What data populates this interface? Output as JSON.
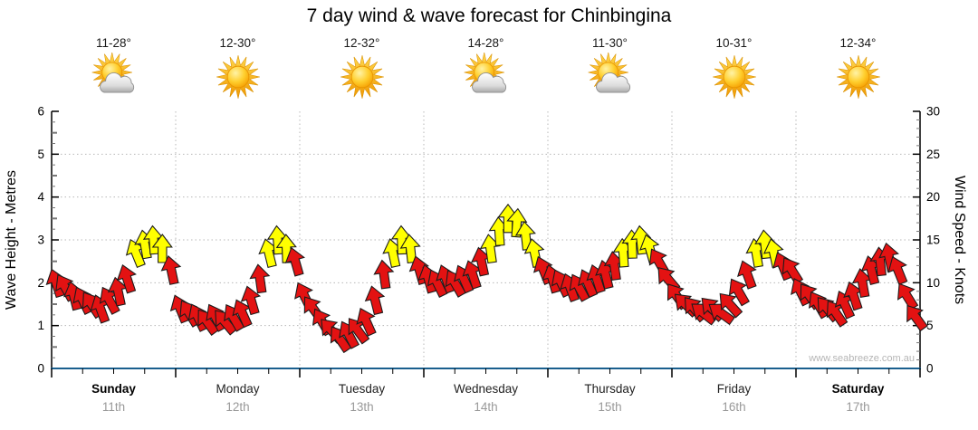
{
  "title": "7 day wind & wave forecast for Chinbingina",
  "watermark": "www.seabreeze.com.au",
  "colors": {
    "arrow_red": "#e31212",
    "arrow_yellow": "#ffff00",
    "arrow_outline": "#1c1c1c",
    "bottom_axis": "#1a5f8e",
    "side_axis": "#000000",
    "grid": "#b8b8b8",
    "tick_minor": "#777777",
    "date_text": "#999999",
    "watermark_text": "#b5b5b5"
  },
  "left_axis": {
    "label": "Wave Height - Metres",
    "min": 0,
    "max": 6,
    "ticks": [
      0,
      1,
      2,
      3,
      4,
      5,
      6
    ],
    "minor_step": 0.25
  },
  "right_axis": {
    "label": "Wind Speed - Knots",
    "min": 0,
    "max": 30,
    "ticks": [
      0,
      5,
      10,
      15,
      20,
      25,
      30
    ],
    "minor_step": 1
  },
  "days": [
    {
      "name": "Sunday",
      "date": "11th",
      "temp": "11-28°",
      "icon": "partly-cloudy",
      "bold": true
    },
    {
      "name": "Monday",
      "date": "12th",
      "temp": "12-30°",
      "icon": "sunny",
      "bold": false
    },
    {
      "name": "Tuesday",
      "date": "13th",
      "temp": "12-32°",
      "icon": "sunny",
      "bold": false
    },
    {
      "name": "Wednesday",
      "date": "14th",
      "temp": "14-28°",
      "icon": "partly-cloudy",
      "bold": false
    },
    {
      "name": "Thursday",
      "date": "15th",
      "temp": "11-30°",
      "icon": "partly-cloudy",
      "bold": false
    },
    {
      "name": "Friday",
      "date": "16th",
      "temp": "10-31°",
      "icon": "sunny",
      "bold": false
    },
    {
      "name": "Saturday",
      "date": "17th",
      "temp": "12-34°",
      "icon": "sunny",
      "bold": true
    }
  ],
  "chart_data": {
    "type": "scatter",
    "marker": "wind-direction-arrow",
    "title": "7 day wind & wave forecast for Chinbingina",
    "x_axis": {
      "categories": [
        "Sunday 11th",
        "Monday 12th",
        "Tuesday 13th",
        "Wednesday 14th",
        "Thursday 15th",
        "Friday 16th",
        "Saturday 17th"
      ],
      "points_per_day": 14,
      "minor_ticks_per_day": 4
    },
    "y_axis_left": {
      "label": "Wave Height - Metres",
      "range": [
        0,
        6
      ],
      "grid_at": [
        1,
        2,
        3,
        4,
        5
      ]
    },
    "y_axis_right": {
      "label": "Wind Speed - Knots",
      "range": [
        0,
        30
      ]
    },
    "legend": "none",
    "grid": {
      "horizontal_dotted": true,
      "vertical_dotted_day_boundaries": true
    },
    "arrow_color_rule": {
      "red_below_knots": 13.25,
      "yellow_at_or_above_knots": 13.25
    },
    "series": [
      {
        "day": "Sunday",
        "wind_knots": [
          10,
          9.5,
          8.5,
          8,
          7.5,
          7,
          8,
          9,
          10.5,
          13.5,
          14.5,
          15,
          14,
          11.5
        ],
        "wind_direction_deg": [
          -18,
          -30,
          -14,
          -26,
          -34,
          -20,
          -28,
          -12,
          -18,
          -22,
          -10,
          -4,
          0,
          -12
        ]
      },
      {
        "day": "Monday",
        "wind_knots": [
          7,
          6.5,
          6,
          5.5,
          6,
          5.5,
          6,
          6.5,
          8,
          10.5,
          13.5,
          15,
          14,
          12.5
        ],
        "wind_direction_deg": [
          -22,
          -32,
          -26,
          -36,
          -28,
          -40,
          -30,
          -24,
          -16,
          -8,
          -14,
          -4,
          -2,
          -16
        ]
      },
      {
        "day": "Tuesday",
        "wind_knots": [
          8.5,
          7,
          5.5,
          4.5,
          3.5,
          4,
          4.5,
          5.5,
          8,
          11,
          13.5,
          15,
          14,
          11.5
        ],
        "wind_direction_deg": [
          -26,
          -36,
          -30,
          -42,
          -34,
          -28,
          -36,
          -24,
          -14,
          -8,
          -12,
          -2,
          -6,
          -16
        ]
      },
      {
        "day": "Wednesday",
        "wind_knots": [
          10.5,
          10,
          10.5,
          10,
          10.5,
          11,
          12.5,
          14,
          16,
          17.5,
          17,
          15.5,
          13.5,
          11.5
        ],
        "wind_direction_deg": [
          -16,
          -26,
          -20,
          -30,
          -24,
          -18,
          -12,
          -8,
          -4,
          0,
          4,
          -6,
          -12,
          -22
        ]
      },
      {
        "day": "Thursday",
        "wind_knots": [
          10.5,
          10,
          9.5,
          9.5,
          10,
          10.5,
          11,
          12,
          13.5,
          14.5,
          15,
          14,
          12.5,
          10.5
        ],
        "wind_direction_deg": [
          -16,
          -26,
          -20,
          -28,
          -24,
          -18,
          -14,
          -8,
          -4,
          -2,
          -6,
          -16,
          -30,
          -40
        ]
      },
      {
        "day": "Friday",
        "wind_knots": [
          8.5,
          7.5,
          7,
          6.5,
          7,
          6.5,
          7.5,
          9,
          11,
          13.5,
          14.5,
          13.5,
          12,
          11.5
        ],
        "wind_direction_deg": [
          -36,
          -46,
          -40,
          -52,
          -44,
          -54,
          -42,
          -30,
          -20,
          -10,
          -6,
          -12,
          -22,
          -32
        ]
      },
      {
        "day": "Saturday",
        "wind_knots": [
          9,
          8.5,
          7.5,
          7,
          6.5,
          7.5,
          8.5,
          10,
          11.5,
          12.5,
          13,
          11.5,
          8.5,
          6
        ],
        "wind_direction_deg": [
          -26,
          -36,
          -30,
          -40,
          -34,
          -24,
          -18,
          -10,
          -14,
          -6,
          -12,
          -22,
          -32,
          -36
        ]
      }
    ]
  }
}
